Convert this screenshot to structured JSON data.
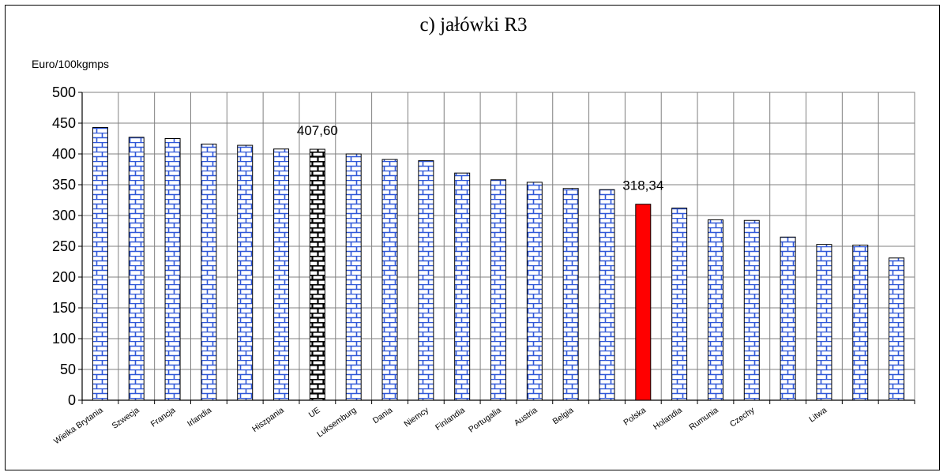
{
  "chart_data": {
    "type": "bar",
    "title": "c) jałówki R3",
    "ylabel": "Euro/100kgmps",
    "xlabel": "",
    "ylim": [
      0,
      500
    ],
    "ytick_step": 50,
    "grid": true,
    "categories": [
      "Wielka Brytania",
      "Szwecja",
      "Francja",
      "Irlandia",
      "",
      "Hiszpania",
      "UE",
      "Luksemburg",
      "Dania",
      "Niemcy",
      "Finlandia",
      "Portugalia",
      "Austria",
      "Belgia",
      "",
      "Polska",
      "Holandia",
      "Rumunia",
      "Czechy",
      "",
      "Litwa",
      "",
      ""
    ],
    "values": [
      443,
      427,
      425,
      416,
      414,
      408,
      407.6,
      400,
      391,
      389,
      369,
      358,
      354,
      344,
      342,
      318.34,
      312,
      293,
      292,
      265,
      253,
      252,
      231
    ],
    "highlight": {
      "UE": "black-pattern",
      "Polska": "red"
    },
    "data_labels": [
      {
        "category": "UE",
        "text": "407,60"
      },
      {
        "category": "Polska",
        "text": "318,34"
      }
    ],
    "colors": {
      "bar_fill": "#ffffff",
      "bar_pattern": "#2f57d8",
      "eu_pattern": "#000000",
      "poland": "#ff0000",
      "grid": "#808080"
    }
  }
}
